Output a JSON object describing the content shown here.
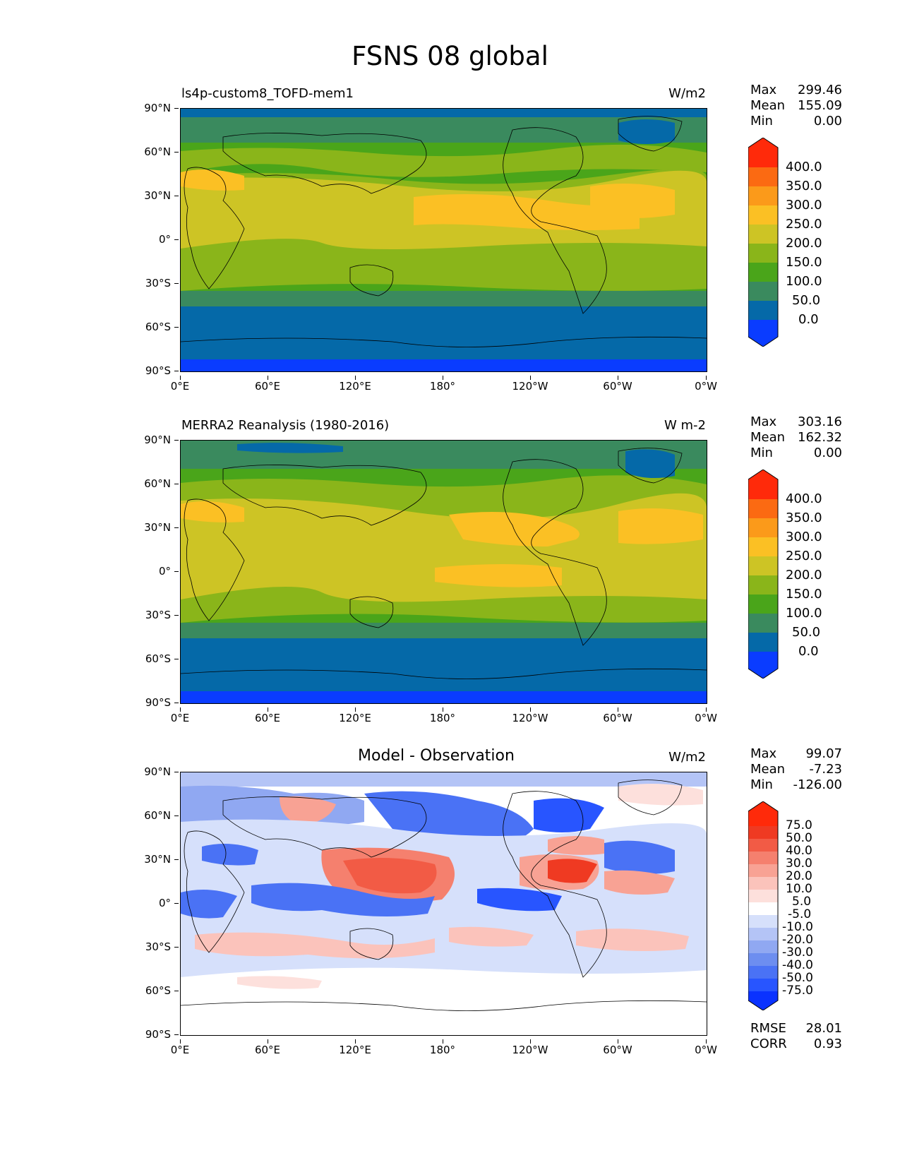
{
  "figure": {
    "title": "FSNS 08 global"
  },
  "axes": {
    "y_ticks": [
      "90°N",
      "60°N",
      "30°N",
      "0°",
      "30°S",
      "60°S",
      "90°S"
    ],
    "x_ticks": [
      "0°E",
      "60°E",
      "120°E",
      "180°",
      "120°W",
      "60°W",
      "0°W"
    ]
  },
  "panels": [
    {
      "title": "ls4p-custom8_TOFD-mem1",
      "units": "W/m2",
      "stats": {
        "max_label": "Max",
        "max": "299.46",
        "mean_label": "Mean",
        "mean": "155.09",
        "min_label": "Min",
        "min": "0.00"
      },
      "colorbar_labels": [
        "400.0",
        "350.0",
        "300.0",
        "250.0",
        "200.0",
        "150.0",
        "100.0",
        "50.0",
        "0.0"
      ]
    },
    {
      "title": "MERRA2 Reanalysis (1980-2016)",
      "units": "W m-2",
      "stats": {
        "max_label": "Max",
        "max": "303.16",
        "mean_label": "Mean",
        "mean": "162.32",
        "min_label": "Min",
        "min": "0.00"
      },
      "colorbar_labels": [
        "400.0",
        "350.0",
        "300.0",
        "250.0",
        "200.0",
        "150.0",
        "100.0",
        "50.0",
        "0.0"
      ]
    },
    {
      "title": "Model - Observation",
      "units": "W/m2",
      "stats": {
        "max_label": "Max",
        "max": "99.07",
        "mean_label": "Mean",
        "mean": "-7.23",
        "min_label": "Min",
        "min": "-126.00"
      },
      "colorbar_labels": [
        "75.0",
        "50.0",
        "40.0",
        "30.0",
        "20.0",
        "10.0",
        "5.0",
        "-5.0",
        "-10.0",
        "-20.0",
        "-30.0",
        "-40.0",
        "-50.0",
        "-75.0"
      ],
      "extra": {
        "rmse_label": "RMSE",
        "rmse": "28.01",
        "corr_label": "CORR",
        "corr": "0.93"
      }
    }
  ],
  "colors": {
    "abs_scale": [
      "#0a3cff",
      "#0569a8",
      "#3a8a5e",
      "#4aa51a",
      "#8ab51a",
      "#cdc425",
      "#fbc024",
      "#fb9a1a",
      "#fb6a12",
      "#ff2a0a"
    ],
    "diff_scale": [
      "#0a32ff",
      "#2855ff",
      "#4a72f5",
      "#6d8ef0",
      "#90a8f2",
      "#b4c4f6",
      "#d6e0fb",
      "#ffffff",
      "#fde0dc",
      "#fbc3bb",
      "#f8a294",
      "#f5806e",
      "#f25b45",
      "#ef3a22",
      "#ff2a0a"
    ]
  }
}
